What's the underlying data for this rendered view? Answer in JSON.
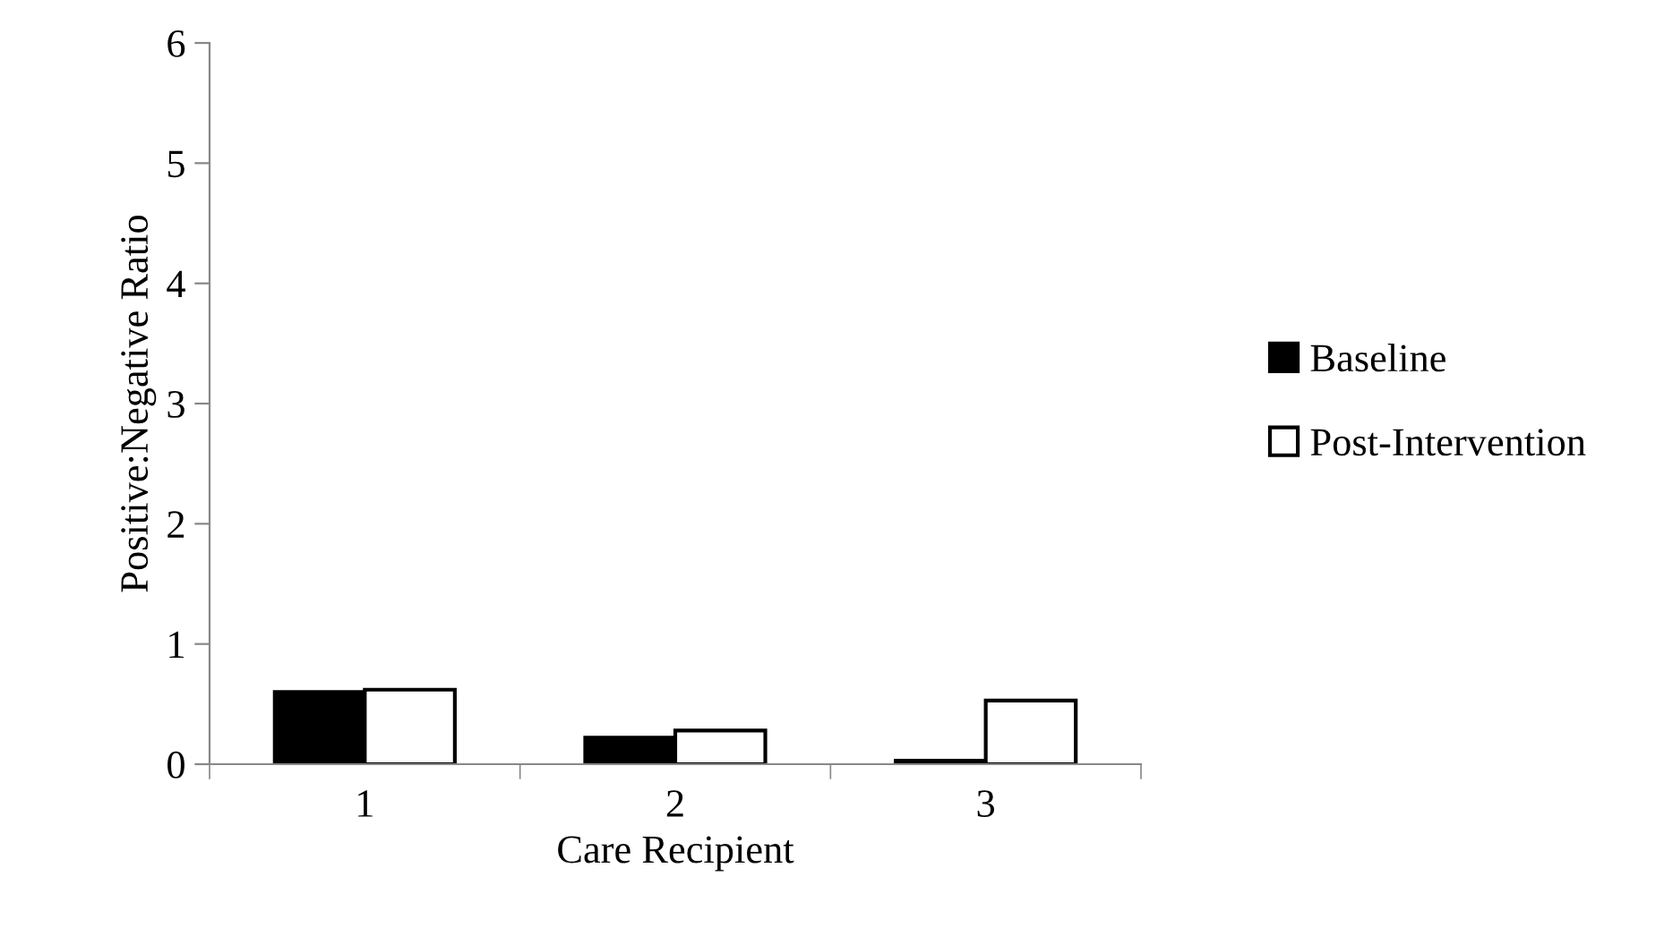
{
  "chart_data": {
    "type": "bar",
    "xlabel": "Care Recipient",
    "ylabel": "Positive:Negative Ratio",
    "categories": [
      "1",
      "2",
      "3"
    ],
    "series": [
      {
        "name": "Baseline",
        "color": "#000000",
        "values": [
          0.6,
          0.22,
          0.03
        ]
      },
      {
        "name": "Post-Intervention",
        "color": "#ffffff",
        "values": [
          0.62,
          0.28,
          0.53
        ]
      }
    ],
    "ylim": [
      0,
      6
    ],
    "yticks": [
      0,
      1,
      2,
      3,
      4,
      5,
      6
    ],
    "grid": false,
    "legend": "right"
  }
}
